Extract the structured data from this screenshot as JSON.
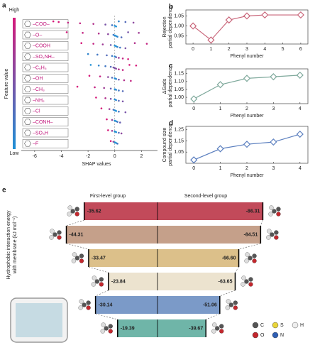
{
  "chart_data": [
    {
      "type": "beeswarm",
      "panel": "a",
      "x_label": "SHAP values",
      "colorbar_label": "Feature value",
      "colorbar_high": "High",
      "colorbar_low": "Low",
      "colorbar_colors": [
        "#1e90d6",
        "#d6197a"
      ],
      "xlim": [
        -7,
        3.2
      ],
      "xticks": [
        -6,
        -4,
        -2,
        0,
        2
      ],
      "features": [
        {
          "name": "–COO–",
          "values": [
            -4.6,
            -4.2,
            -3.5,
            -2.6,
            -1.6,
            -0.7,
            -0.2,
            0,
            0.1,
            0.3,
            0.8,
            1.4
          ],
          "feature_values": [
            1,
            1,
            0.9,
            0.9,
            0.8,
            0.5,
            0.2,
            0,
            0,
            0.1,
            0.3,
            0.6
          ]
        },
        {
          "name": "–O–",
          "values": [
            -3.6,
            -2.4,
            -1.2,
            -0.5,
            -0.1,
            0,
            0.1,
            0.2,
            0.5,
            1.0,
            1.8
          ],
          "feature_values": [
            1,
            0.9,
            0.8,
            0.6,
            0.2,
            0,
            0,
            0.1,
            0.3,
            0.5,
            0.7
          ]
        },
        {
          "name": "–COOH",
          "values": [
            -2.5,
            -1.6,
            -0.9,
            -0.3,
            0,
            0.1,
            0.2,
            0.4,
            0.8,
            1.5,
            2.4
          ],
          "feature_values": [
            1,
            0.9,
            0.7,
            0.4,
            0,
            0,
            0.1,
            0.2,
            0.5,
            0.8,
            0.9
          ]
        },
        {
          "name": "–SO₂NH–",
          "values": [
            -2.0,
            -1.3,
            -0.6,
            -0.2,
            0,
            0.1,
            0.3,
            0.6,
            1.0
          ],
          "feature_values": [
            0.1,
            0.2,
            0.3,
            0.2,
            0,
            0.4,
            0.7,
            0.9,
            1
          ]
        },
        {
          "name": "–C₆H₅",
          "values": [
            -1.8,
            -1.2,
            -0.7,
            -0.3,
            -0.1,
            0,
            0.1,
            0.3,
            0.6,
            1.1,
            1.6
          ],
          "feature_values": [
            0,
            0.1,
            0.2,
            0.3,
            0.5,
            0.5,
            0.6,
            0.8,
            0.9,
            1,
            1
          ]
        },
        {
          "name": "–OH",
          "values": [
            -1.9,
            -1.1,
            -0.5,
            -0.2,
            0,
            0.1,
            0.3,
            0.7,
            1.2
          ],
          "feature_values": [
            1,
            0.9,
            0.6,
            0.3,
            0,
            0.1,
            0.4,
            0.8,
            0.9
          ]
        },
        {
          "name": "–CH₃",
          "values": [
            -2.8,
            -1.5,
            -0.8,
            -0.3,
            0,
            0.1,
            0.3,
            0.6
          ],
          "feature_values": [
            1,
            0.9,
            0.7,
            0.4,
            0,
            0.1,
            0.2,
            0.3
          ]
        },
        {
          "name": "–NH₂",
          "values": [
            -1.4,
            -0.7,
            -0.3,
            0,
            0.1,
            0.3,
            0.6
          ],
          "feature_values": [
            1,
            0.8,
            0.5,
            0,
            0.1,
            0.3,
            0.5
          ]
        },
        {
          "name": "–Cl",
          "values": [
            -1.0,
            -0.4,
            -0.1,
            0,
            0.1,
            0.3,
            0.8
          ],
          "feature_values": [
            1,
            0.7,
            0.3,
            0,
            0,
            0.2,
            0.5
          ]
        },
        {
          "name": "–CONH–",
          "values": [
            -0.6,
            -0.2,
            0,
            0.1,
            0.2,
            0.4
          ],
          "feature_values": [
            1,
            0.6,
            0,
            0,
            0.2,
            0.4
          ]
        },
        {
          "name": "–SO₃H",
          "values": [
            -0.5,
            -0.2,
            0,
            0.1,
            0.3,
            0.5
          ],
          "feature_values": [
            1,
            0.7,
            0,
            0,
            0.3,
            0.6
          ]
        },
        {
          "name": "–F",
          "values": [
            -0.3,
            -0.1,
            0,
            0.1,
            0.2
          ],
          "feature_values": [
            1,
            0.6,
            0,
            0,
            0.2
          ]
        }
      ]
    },
    {
      "type": "line",
      "panel": "b",
      "x_label": "Phenyl number",
      "y_label": [
        "Rejection",
        "partial dependence"
      ],
      "color": "#c9667a",
      "x": [
        0,
        1,
        2,
        3,
        4,
        6
      ],
      "values": [
        1.0,
        0.93,
        1.03,
        1.05,
        1.055,
        1.055
      ],
      "xlim": [
        -0.4,
        6.4
      ],
      "xticks": [
        0,
        1,
        2,
        3,
        4,
        5,
        6
      ],
      "ylim": [
        0.91,
        1.08
      ],
      "yticks": [
        {
          "value": 0.95,
          "label": "0.95"
        },
        {
          "value": 1.0,
          "label": "1.00"
        },
        {
          "value": 1.05,
          "label": "1.05"
        }
      ]
    },
    {
      "type": "line",
      "panel": "c",
      "x_label": "Phenyl number",
      "y_label": [
        "ΔGads",
        "partial dependence"
      ],
      "color": "#7fa99c",
      "x": [
        0,
        1,
        2,
        3,
        4
      ],
      "values": [
        0.99,
        1.08,
        1.12,
        1.13,
        1.14
      ],
      "xlim": [
        -0.3,
        4.3
      ],
      "xticks": [
        0,
        1,
        2,
        3,
        4
      ],
      "ylim": [
        0.96,
        1.18
      ],
      "yticks": [
        {
          "value": 1.0,
          "label": "1.00"
        },
        {
          "value": 1.05,
          "label": "1.05"
        },
        {
          "value": 1.1,
          "label": "1.10"
        },
        1.15
      ]
    },
    {
      "type": "line",
      "panel": "d",
      "x_label": "Phenyl number",
      "y_label": [
        "Compound size",
        "partial dependence"
      ],
      "color": "#5b7fbf",
      "x": [
        0,
        1,
        2,
        3,
        4
      ],
      "values": [
        0.98,
        1.08,
        1.12,
        1.14,
        1.21
      ],
      "xlim": [
        -0.3,
        4.3
      ],
      "xticks": [
        0,
        1,
        2,
        3,
        4
      ],
      "ylim": [
        0.95,
        1.28
      ],
      "yticks": [
        1.05,
        1.15,
        1.25
      ]
    },
    {
      "type": "diverging_bar",
      "panel": "e",
      "y_label": [
        "Hydrophobic interaction energy",
        "with membrane (kJ mol⁻¹)"
      ],
      "colors": [
        "#c24a5a",
        "#c5a08a",
        "#dcc08a",
        "#ece3cf",
        "#7b9ac8",
        "#6fb5a8"
      ],
      "series": [
        {
          "name": "First-level group",
          "values": [
            -35.62,
            -44.31,
            -33.47,
            -23.84,
            -30.14,
            -19.39
          ],
          "value_labels": [
            "-35.62",
            "-44.31",
            "-33.47",
            "-23.84",
            "-30.14",
            "-19.39"
          ]
        },
        {
          "name": "Second-level group",
          "values": [
            -86.31,
            -84.51,
            -66.6,
            -63.65,
            -51.06,
            -39.67
          ],
          "value_labels": [
            "-86.31",
            "-84.51",
            "-66.60",
            "-63.65",
            "-51.06",
            "-39.67"
          ]
        }
      ],
      "atom_legend": [
        {
          "label": "C",
          "color": "#555555"
        },
        {
          "label": "S",
          "color": "#e8d43a"
        },
        {
          "label": "H",
          "color": "#eeeeee"
        },
        {
          "label": "O",
          "color": "#c2272d"
        },
        {
          "label": "N",
          "color": "#2f5fb3"
        }
      ]
    }
  ]
}
